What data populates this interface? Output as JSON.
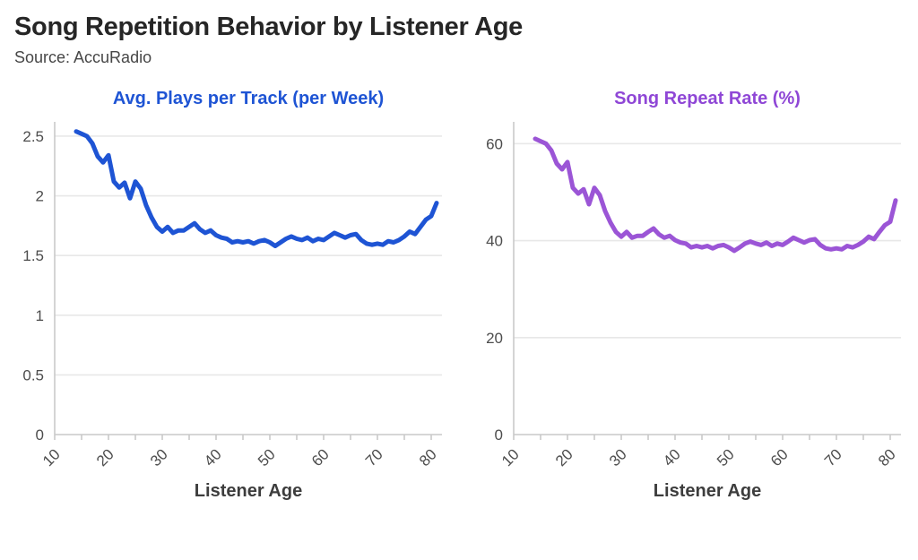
{
  "header": {
    "title": "Song Repetition Behavior by Listener Age",
    "source": "Source: AccuRadio"
  },
  "styles": {
    "background": "#ffffff",
    "title_color": "#262626",
    "subtitle_color": "#474747",
    "axis_text_color": "#4d4d4d",
    "axis_label_color": "#3d3d3d",
    "grid_color": "#e8e8e8",
    "spine_color": "#c9c9c9",
    "blue_accent": "#1e54d4",
    "purple_accent": "#9450d6"
  },
  "chart_data": [
    {
      "type": "line",
      "id": "plays-per-track",
      "title": "Avg. Plays per Track (per Week)",
      "title_color": "#1e54d4",
      "line_color": "#1e54d4",
      "xlabel": "Listener Age",
      "ylabel": "",
      "grid": true,
      "legend": "none",
      "xlim": [
        10,
        82
      ],
      "ylim": [
        0,
        2.62
      ],
      "xticks": [
        10,
        20,
        30,
        40,
        50,
        60,
        70,
        80
      ],
      "minor_xtick_step": 5,
      "yticks": [
        0,
        0.5,
        1,
        1.5,
        2,
        2.5
      ],
      "ytick_labels": [
        "0",
        "0.5",
        "1",
        "1.5",
        "2",
        "2.5"
      ],
      "x": [
        14,
        15,
        16,
        17,
        18,
        19,
        20,
        21,
        22,
        23,
        24,
        25,
        26,
        27,
        28,
        29,
        30,
        31,
        32,
        33,
        34,
        35,
        36,
        37,
        38,
        39,
        40,
        41,
        42,
        43,
        44,
        45,
        46,
        47,
        48,
        49,
        50,
        51,
        52,
        53,
        54,
        55,
        56,
        57,
        58,
        59,
        60,
        61,
        62,
        63,
        64,
        65,
        66,
        67,
        68,
        69,
        70,
        71,
        72,
        73,
        74,
        75,
        76,
        77,
        78,
        79,
        80,
        81
      ],
      "values": [
        2.54,
        2.52,
        2.5,
        2.44,
        2.33,
        2.28,
        2.34,
        2.12,
        2.07,
        2.11,
        1.98,
        2.12,
        2.06,
        1.92,
        1.82,
        1.74,
        1.7,
        1.74,
        1.69,
        1.71,
        1.71,
        1.74,
        1.77,
        1.72,
        1.69,
        1.71,
        1.67,
        1.65,
        1.64,
        1.61,
        1.62,
        1.61,
        1.62,
        1.6,
        1.62,
        1.63,
        1.61,
        1.58,
        1.61,
        1.64,
        1.66,
        1.64,
        1.63,
        1.65,
        1.62,
        1.64,
        1.63,
        1.66,
        1.69,
        1.67,
        1.65,
        1.67,
        1.68,
        1.63,
        1.6,
        1.59,
        1.6,
        1.59,
        1.62,
        1.61,
        1.63,
        1.66,
        1.7,
        1.68,
        1.74,
        1.8,
        1.83,
        1.94
      ]
    },
    {
      "type": "line",
      "id": "song-repeat-rate",
      "title": "Song Repeat Rate (%)",
      "title_color": "#8f47d6",
      "line_color": "#9b55d6",
      "xlabel": "Listener Age",
      "ylabel": "",
      "grid": true,
      "legend": "none",
      "xlim": [
        10,
        82
      ],
      "ylim": [
        0,
        64.5
      ],
      "xticks": [
        10,
        20,
        30,
        40,
        50,
        60,
        70,
        80
      ],
      "minor_xtick_step": 5,
      "yticks": [
        0,
        20,
        40,
        60
      ],
      "ytick_labels": [
        "0",
        "20",
        "40",
        "60"
      ],
      "x": [
        14,
        15,
        16,
        17,
        18,
        19,
        20,
        21,
        22,
        23,
        24,
        25,
        26,
        27,
        28,
        29,
        30,
        31,
        32,
        33,
        34,
        35,
        36,
        37,
        38,
        39,
        40,
        41,
        42,
        43,
        44,
        45,
        46,
        47,
        48,
        49,
        50,
        51,
        52,
        53,
        54,
        55,
        56,
        57,
        58,
        59,
        60,
        61,
        62,
        63,
        64,
        65,
        66,
        67,
        68,
        69,
        70,
        71,
        72,
        73,
        74,
        75,
        76,
        77,
        78,
        79,
        80,
        81
      ],
      "values": [
        61.0,
        60.5,
        60.0,
        58.6,
        55.9,
        54.7,
        56.2,
        50.9,
        49.7,
        50.6,
        47.5,
        50.9,
        49.4,
        46.1,
        43.7,
        41.8,
        40.8,
        41.8,
        40.6,
        41.0,
        41.0,
        41.8,
        42.5,
        41.3,
        40.6,
        41.0,
        40.1,
        39.6,
        39.4,
        38.6,
        38.9,
        38.6,
        38.9,
        38.4,
        38.9,
        39.1,
        38.6,
        37.9,
        38.6,
        39.4,
        39.8,
        39.4,
        39.1,
        39.6,
        38.9,
        39.4,
        39.1,
        39.8,
        40.6,
        40.1,
        39.6,
        40.1,
        40.3,
        39.1,
        38.4,
        38.2,
        38.4,
        38.2,
        38.9,
        38.6,
        39.1,
        39.8,
        40.8,
        40.3,
        41.8,
        43.2,
        43.9,
        48.3
      ]
    }
  ]
}
